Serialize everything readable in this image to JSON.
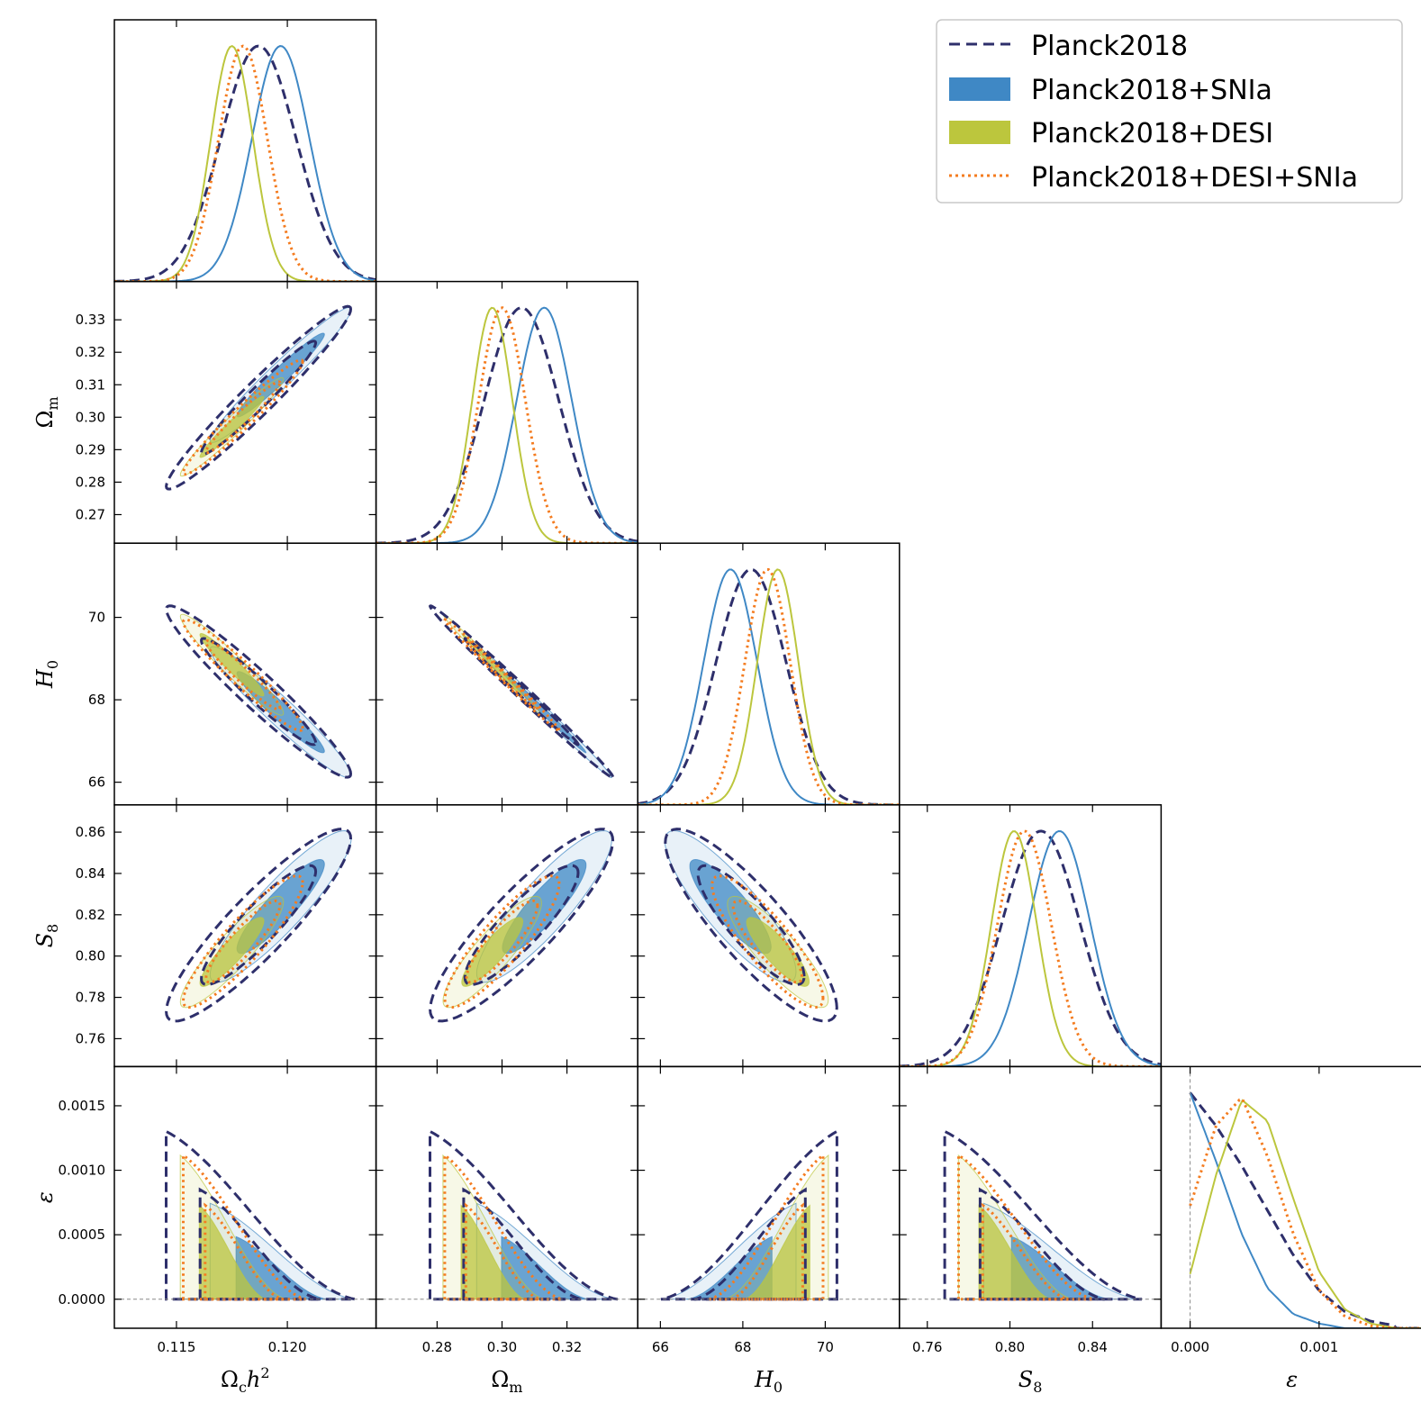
{
  "legend": [
    {
      "label": "Planck2018",
      "style": "dashed",
      "color": "#2e2f6b"
    },
    {
      "label": "Planck2018+SNIa",
      "style": "filled",
      "color": "#3f88c5"
    },
    {
      "label": "Planck2018+DESI",
      "style": "filled",
      "color": "#bcc63d"
    },
    {
      "label": "Planck2018+DESI+SNIa",
      "style": "dotted",
      "color": "#f47c20"
    }
  ],
  "axis_labels": {
    "omch2": {
      "base": "Ω",
      "sub": "c",
      "tail": "h",
      "sup": "2"
    },
    "om": {
      "base": "Ω",
      "sub": "m"
    },
    "h0": {
      "base": "H",
      "sub": "0"
    },
    "s8": {
      "base": "S",
      "sub": "8"
    },
    "eps": {
      "base": "ε"
    }
  },
  "ticks": {
    "omch2": [
      "0.115",
      "0.120"
    ],
    "om_y": [
      "0.27",
      "0.28",
      "0.29",
      "0.30",
      "0.31",
      "0.32",
      "0.33"
    ],
    "om_x": [
      "0.28",
      "0.30",
      "0.32"
    ],
    "h0_y": [
      "66",
      "68",
      "70"
    ],
    "h0_x": [
      "66",
      "68",
      "70"
    ],
    "s8_y": [
      "0.76",
      "0.78",
      "0.80",
      "0.82",
      "0.84",
      "0.86"
    ],
    "s8_x": [
      "0.76",
      "0.80",
      "0.84"
    ],
    "eps_y": [
      "0.0000",
      "0.0005",
      "0.0010",
      "0.0015"
    ],
    "eps_x": [
      "0.000",
      "0.001"
    ]
  },
  "chart_data": {
    "type": "triangle",
    "parameters": [
      {
        "name": "omch2",
        "range": [
          0.1122,
          0.124
        ],
        "ticks": [
          0.115,
          0.12
        ]
      },
      {
        "name": "om",
        "range": [
          0.2612,
          0.3418
        ],
        "ticks": [
          0.27,
          0.28,
          0.29,
          0.3,
          0.31,
          0.32,
          0.33
        ]
      },
      {
        "name": "h0",
        "range": [
          65.45,
          71.8
        ],
        "ticks": [
          66,
          68,
          70
        ]
      },
      {
        "name": "s8",
        "range": [
          0.7465,
          0.8732
        ],
        "ticks": [
          0.76,
          0.78,
          0.8,
          0.82,
          0.84,
          0.86
        ]
      },
      {
        "name": "eps",
        "range": [
          -0.000225,
          0.001804
        ],
        "ticks": [
          0.0,
          0.0005,
          0.001,
          0.0015
        ]
      }
    ],
    "series": [
      {
        "name": "Planck2018",
        "style": "dashed",
        "color": "#2e2f6b",
        "mean": {
          "omch2": 0.1187,
          "om": 0.306,
          "h0": 68.2,
          "s8": 0.815
        },
        "sigma": {
          "omch2": 0.0017,
          "om": 0.0115,
          "h0": 0.85,
          "s8": 0.019
        },
        "eps_marginal": {
          "x": [
            0.0,
            0.0002,
            0.0004,
            0.0006,
            0.0008,
            0.001,
            0.0012,
            0.0014,
            0.0016
          ],
          "density": [
            1.0,
            0.86,
            0.69,
            0.5,
            0.31,
            0.16,
            0.07,
            0.03,
            0.01
          ]
        }
      },
      {
        "name": "Planck2018+SNIa",
        "style": "filled",
        "color": "#3f88c5",
        "mean": {
          "omch2": 0.1197,
          "om": 0.313,
          "h0": 67.7,
          "s8": 0.824
        },
        "sigma": {
          "omch2": 0.0013,
          "om": 0.0085,
          "h0": 0.65,
          "s8": 0.015
        },
        "eps_marginal": {
          "x": [
            0.0,
            0.0002,
            0.0004,
            0.0006,
            0.0008,
            0.001,
            0.0012
          ],
          "density": [
            1.0,
            0.71,
            0.4,
            0.17,
            0.06,
            0.02,
            0.0
          ]
        }
      },
      {
        "name": "Planck2018+DESI",
        "style": "filled",
        "color": "#bcc63d",
        "mean": {
          "omch2": 0.1175,
          "om": 0.297,
          "h0": 68.85,
          "s8": 0.802
        },
        "sigma": {
          "omch2": 0.00095,
          "om": 0.0062,
          "h0": 0.5,
          "s8": 0.011
        },
        "eps_marginal": {
          "x": [
            0.0,
            0.0002,
            0.0004,
            0.0006,
            0.0008,
            0.001,
            0.0012,
            0.0014,
            0.0016
          ],
          "density": [
            0.23,
            0.65,
            0.97,
            0.88,
            0.55,
            0.24,
            0.08,
            0.02,
            0.0
          ]
        }
      },
      {
        "name": "Planck2018+DESI+SNIa",
        "style": "dotted",
        "color": "#f47c20",
        "mean": {
          "omch2": 0.118,
          "om": 0.3,
          "h0": 68.6,
          "s8": 0.807
        },
        "sigma": {
          "omch2": 0.0011,
          "om": 0.0072,
          "h0": 0.55,
          "s8": 0.013
        },
        "eps_marginal": {
          "x": [
            0.0,
            0.0002,
            0.0004,
            0.0006,
            0.0008,
            0.001,
            0.0012,
            0.0014,
            0.0016
          ],
          "density": [
            0.52,
            0.86,
            0.98,
            0.73,
            0.4,
            0.16,
            0.05,
            0.01,
            0.0
          ]
        }
      }
    ],
    "correlations": {
      "omch2-om": 0.97,
      "omch2-h0": -0.96,
      "om-h0": -0.995,
      "omch2-s8": 0.9,
      "om-s8": 0.88,
      "h0-s8": -0.86
    },
    "eps_lower_bound": 0.0,
    "reference_lines": {
      "eps": 0.0
    }
  }
}
